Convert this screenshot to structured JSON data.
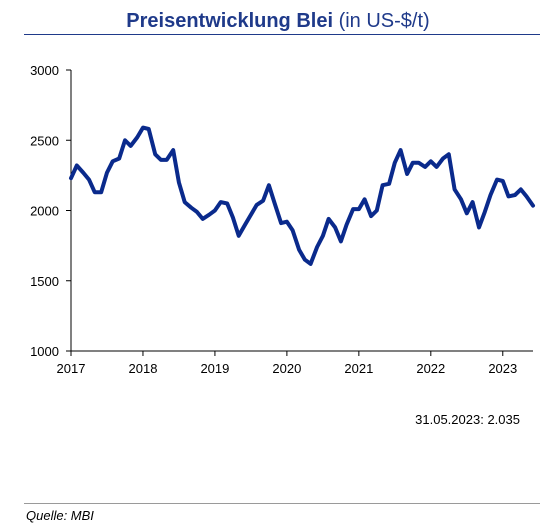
{
  "header": {
    "title_bold": "Preisentwicklung Blei",
    "title_unit": "(in US-$/t)"
  },
  "annotation": {
    "date": "31.05.2023:",
    "value": "2.035"
  },
  "footer": {
    "source": "Quelle: MBI"
  },
  "colors": {
    "title": "#1f3a8a",
    "series": "#0a2a8c"
  },
  "chart_data": {
    "type": "line",
    "title": "Preisentwicklung Blei (in US-$/t)",
    "xlabel": "",
    "ylabel": "",
    "xlim": [
      2017.0,
      2023.42
    ],
    "ylim": [
      1000,
      3000
    ],
    "grid": false,
    "legend": "none",
    "x_ticks": [
      2017,
      2018,
      2019,
      2020,
      2021,
      2022,
      2023
    ],
    "x_tick_labels": [
      "2017",
      "2018",
      "2019",
      "2020",
      "2021",
      "2022",
      "2023"
    ],
    "y_ticks": [
      1000,
      1500,
      2000,
      2500,
      3000
    ],
    "y_tick_labels": [
      "1000",
      "1500",
      "2000",
      "2500",
      "3000"
    ],
    "series": [
      {
        "points": [
          [
            2017.0,
            2230
          ],
          [
            2017.08,
            2320
          ],
          [
            2017.17,
            2270
          ],
          [
            2017.25,
            2220
          ],
          [
            2017.33,
            2130
          ],
          [
            2017.42,
            2130
          ],
          [
            2017.5,
            2270
          ],
          [
            2017.58,
            2350
          ],
          [
            2017.67,
            2370
          ],
          [
            2017.75,
            2500
          ],
          [
            2017.83,
            2460
          ],
          [
            2017.92,
            2520
          ],
          [
            2018.0,
            2590
          ],
          [
            2018.08,
            2580
          ],
          [
            2018.17,
            2400
          ],
          [
            2018.25,
            2360
          ],
          [
            2018.33,
            2360
          ],
          [
            2018.42,
            2430
          ],
          [
            2018.5,
            2200
          ],
          [
            2018.58,
            2060
          ],
          [
            2018.67,
            2020
          ],
          [
            2018.75,
            1990
          ],
          [
            2018.83,
            1940
          ],
          [
            2018.92,
            1970
          ],
          [
            2019.0,
            2000
          ],
          [
            2019.08,
            2060
          ],
          [
            2019.17,
            2050
          ],
          [
            2019.25,
            1950
          ],
          [
            2019.33,
            1820
          ],
          [
            2019.42,
            1900
          ],
          [
            2019.5,
            1970
          ],
          [
            2019.58,
            2040
          ],
          [
            2019.67,
            2070
          ],
          [
            2019.75,
            2180
          ],
          [
            2019.83,
            2050
          ],
          [
            2019.92,
            1910
          ],
          [
            2020.0,
            1920
          ],
          [
            2020.08,
            1860
          ],
          [
            2020.17,
            1720
          ],
          [
            2020.25,
            1650
          ],
          [
            2020.33,
            1620
          ],
          [
            2020.42,
            1740
          ],
          [
            2020.5,
            1820
          ],
          [
            2020.58,
            1940
          ],
          [
            2020.67,
            1880
          ],
          [
            2020.75,
            1780
          ],
          [
            2020.83,
            1900
          ],
          [
            2020.92,
            2010
          ],
          [
            2021.0,
            2010
          ],
          [
            2021.08,
            2080
          ],
          [
            2021.17,
            1960
          ],
          [
            2021.25,
            2000
          ],
          [
            2021.33,
            2180
          ],
          [
            2021.42,
            2190
          ],
          [
            2021.5,
            2340
          ],
          [
            2021.58,
            2430
          ],
          [
            2021.67,
            2260
          ],
          [
            2021.75,
            2340
          ],
          [
            2021.83,
            2340
          ],
          [
            2021.92,
            2310
          ],
          [
            2022.0,
            2350
          ],
          [
            2022.08,
            2310
          ],
          [
            2022.17,
            2370
          ],
          [
            2022.25,
            2400
          ],
          [
            2022.33,
            2150
          ],
          [
            2022.42,
            2080
          ],
          [
            2022.5,
            1980
          ],
          [
            2022.58,
            2060
          ],
          [
            2022.67,
            1880
          ],
          [
            2022.75,
            1990
          ],
          [
            2022.83,
            2110
          ],
          [
            2022.92,
            2220
          ],
          [
            2023.0,
            2210
          ],
          [
            2023.08,
            2100
          ],
          [
            2023.17,
            2110
          ],
          [
            2023.25,
            2150
          ],
          [
            2023.33,
            2100
          ],
          [
            2023.42,
            2035
          ]
        ]
      }
    ]
  }
}
